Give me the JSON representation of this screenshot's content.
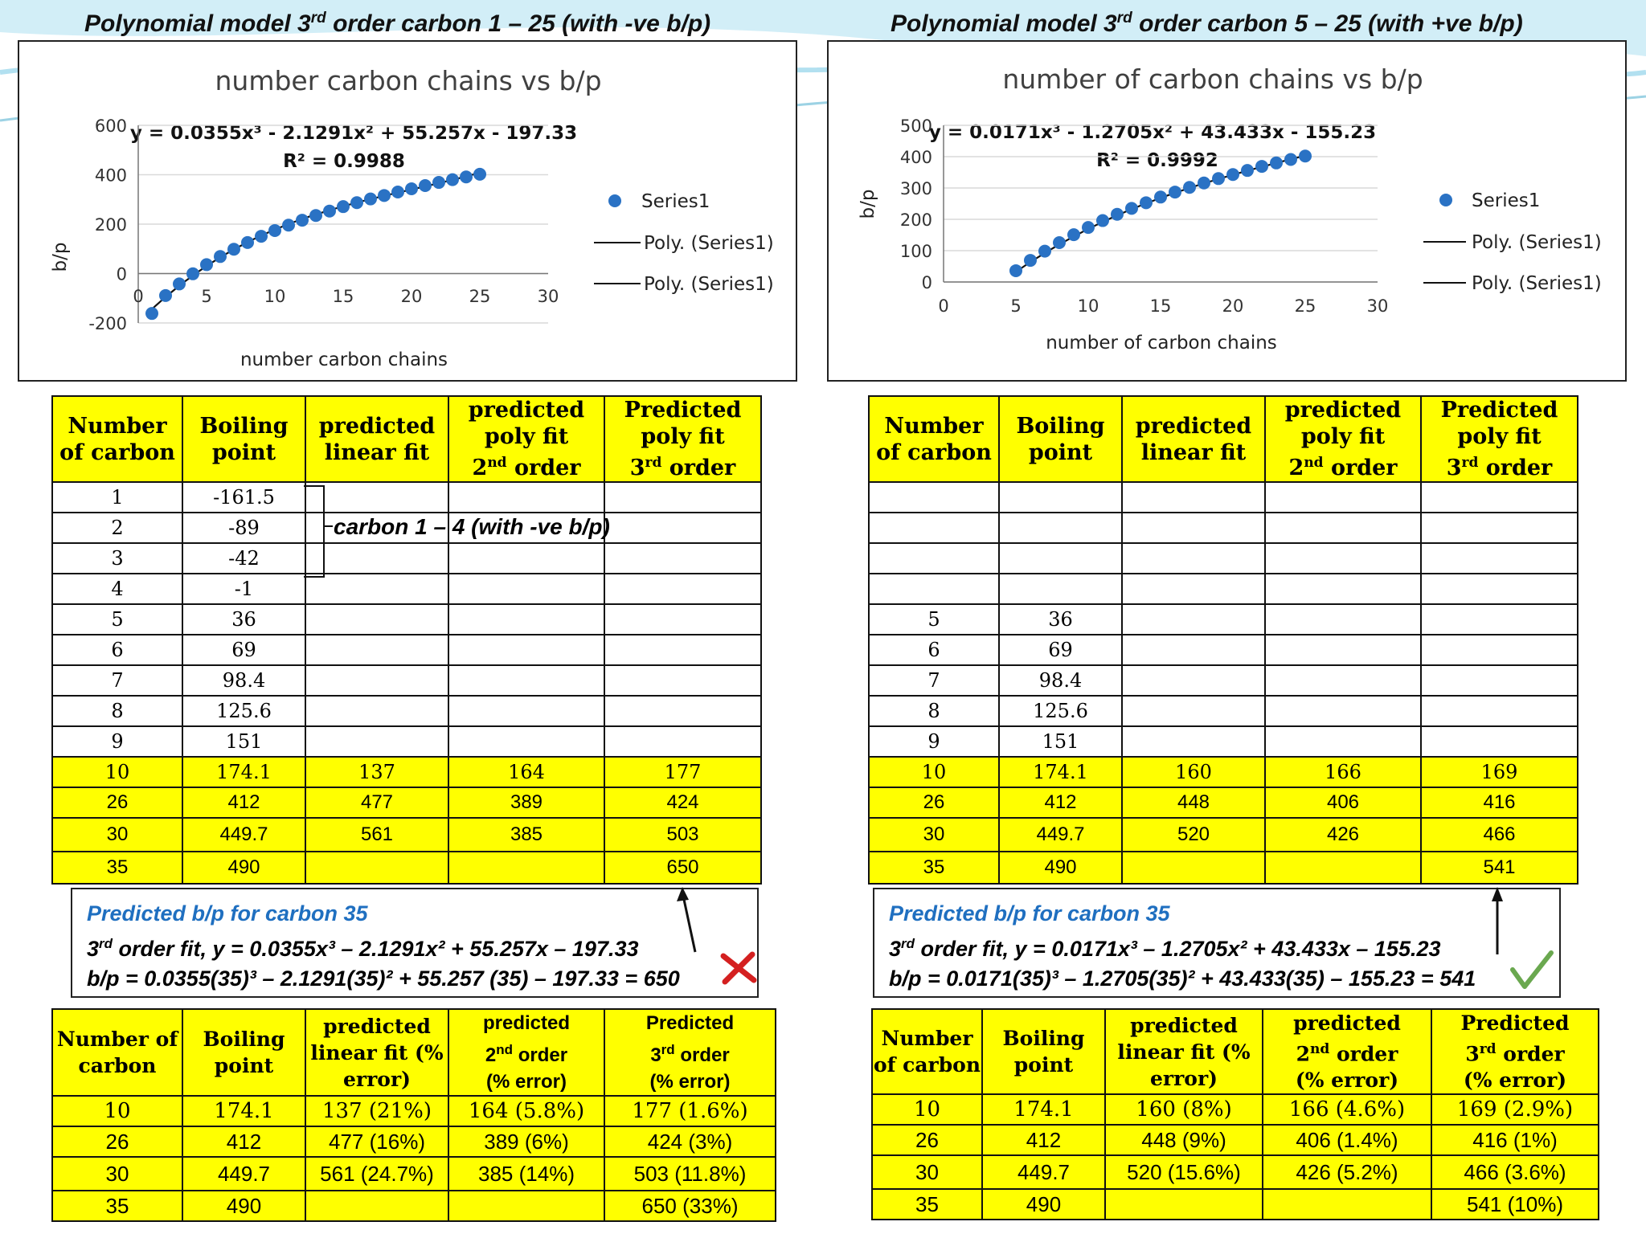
{
  "left": {
    "slide_title": {
      "pre": "Polynomial model 3",
      "sup": "rd",
      "post": " order carbon 1 – 25 (with -ve b/p)"
    },
    "chart_title": "number carbon chains vs b/p",
    "equation": "y = 0.0355x³ - 2.1291x² + 55.257x - 197.33",
    "r2": "R² = 0.9988",
    "xlabel": "number carbon chains",
    "ylabel": "b/p",
    "xticks": [
      "0",
      "5",
      "10",
      "15",
      "20",
      "25",
      "30"
    ],
    "yticks": [
      "-200",
      "0",
      "200",
      "400",
      "600"
    ],
    "legend": [
      "Series1",
      "Poly. (Series1)",
      "Poly. (Series1)"
    ],
    "table1": {
      "headers": [
        "Number of carbon",
        "Boiling point",
        "predicted linear fit",
        "predicted poly fit",
        "Predicted poly fit"
      ],
      "orders": [
        "2nd order",
        "3rd order"
      ],
      "rows": [
        [
          "1",
          "-161.5",
          "",
          "",
          ""
        ],
        [
          "2",
          "-89",
          "",
          "",
          ""
        ],
        [
          "3",
          "-42",
          "",
          "",
          ""
        ],
        [
          "4",
          "-1",
          "",
          "",
          ""
        ],
        [
          "5",
          "36",
          "",
          "",
          ""
        ],
        [
          "6",
          "69",
          "",
          "",
          ""
        ],
        [
          "7",
          "98.4",
          "",
          "",
          ""
        ],
        [
          "8",
          "125.6",
          "",
          "",
          ""
        ],
        [
          "9",
          "151",
          "",
          "",
          ""
        ],
        [
          "10",
          "174.1",
          "137",
          "164",
          "177"
        ],
        [
          "26",
          "412",
          "477",
          "389",
          "424"
        ],
        [
          "30",
          "449.7",
          "561",
          "385",
          "503"
        ],
        [
          "35",
          "490",
          "",
          "",
          "650"
        ]
      ]
    },
    "bracket_label": "carbon 1 – 4 (with -ve b/p)",
    "note": {
      "heading": "Predicted b/p for carbon 35",
      "line1_pre": "3",
      "line1_sup": "rd",
      "line1_post": " order fit, y = 0.0355x³ – 2.1291x² + 55.257x – 197.33",
      "line2": "b/p = 0.0355(35)³ – 2.1291(35)² + 55.257 (35) – 197.33 = 650"
    },
    "table2": {
      "headers": [
        "Number of carbon",
        "Boiling point",
        "predicted linear fit (% error)",
        "predicted",
        "Predicted"
      ],
      "sub": [
        "2nd order",
        "(% error)",
        "3rd order",
        "(% error)"
      ],
      "rows": [
        [
          "10",
          "174.1",
          "137 (21%)",
          "164 (5.8%)",
          "177 (1.6%)"
        ],
        [
          "26",
          "412",
          "477 (16%)",
          "389 (6%)",
          "424 (3%)"
        ],
        [
          "30",
          "449.7",
          "561 (24.7%)",
          "385 (14%)",
          "503 (11.8%)"
        ],
        [
          "35",
          "490",
          "",
          "",
          "650 (33%)"
        ]
      ]
    }
  },
  "right": {
    "slide_title": {
      "pre": "Polynomial model 3",
      "sup": "rd",
      "post": " order carbon 5 – 25 (with +ve b/p)"
    },
    "chart_title": "number of carbon chains vs b/p",
    "equation": "y = 0.0171x³ - 1.2705x² + 43.433x - 155.23",
    "r2": "R² = 0.9992",
    "xlabel": "number of carbon chains",
    "ylabel": "b/p",
    "xticks": [
      "0",
      "5",
      "10",
      "15",
      "20",
      "25",
      "30"
    ],
    "yticks": [
      "0",
      "100",
      "200",
      "300",
      "400",
      "500"
    ],
    "legend": [
      "Series1",
      "Poly. (Series1)",
      "Poly. (Series1)"
    ],
    "table1": {
      "headers": [
        "Number of carbon",
        "Boiling point",
        "predicted linear fit",
        "predicted poly fit",
        "Predicted poly fit"
      ],
      "orders": [
        "2nd order",
        "3rd order"
      ],
      "rows": [
        [
          "",
          "",
          "",
          "",
          ""
        ],
        [
          "",
          "",
          "",
          "",
          ""
        ],
        [
          "",
          "",
          "",
          "",
          ""
        ],
        [
          "",
          "",
          "",
          "",
          ""
        ],
        [
          "5",
          "36",
          "",
          "",
          ""
        ],
        [
          "6",
          "69",
          "",
          "",
          ""
        ],
        [
          "7",
          "98.4",
          "",
          "",
          ""
        ],
        [
          "8",
          "125.6",
          "",
          "",
          ""
        ],
        [
          "9",
          "151",
          "",
          "",
          ""
        ],
        [
          "10",
          "174.1",
          "160",
          "166",
          "169"
        ],
        [
          "26",
          "412",
          "448",
          "406",
          "416"
        ],
        [
          "30",
          "449.7",
          "520",
          "426",
          "466"
        ],
        [
          "35",
          "490",
          "",
          "",
          "541"
        ]
      ]
    },
    "note": {
      "heading": "Predicted b/p for carbon 35",
      "line1_pre": "3",
      "line1_sup": "rd",
      "line1_post": " order fit, y = 0.0171x³ – 1.2705x² + 43.433x – 155.23",
      "line2": "b/p = 0.0171(35)³ – 1.2705(35)² + 43.433(35) – 155.23 = 541"
    },
    "table2": {
      "headers": [
        "Number of carbon",
        "Boiling point",
        "predicted linear fit (% error)",
        "predicted",
        "Predicted"
      ],
      "sub": [
        "2nd order",
        "(% error)",
        "3rd order",
        "(% error)"
      ],
      "rows": [
        [
          "10",
          "174.1",
          "160 (8%)",
          "166 (4.6%)",
          "169 (2.9%)"
        ],
        [
          "26",
          "412",
          "448 (9%)",
          "406 (1.4%)",
          "416 (1%)"
        ],
        [
          "30",
          "449.7",
          "520 (15.6%)",
          "426 (5.2%)",
          "466 (3.6%)"
        ],
        [
          "35",
          "490",
          "",
          "",
          "541 (10%)"
        ]
      ]
    }
  },
  "colors": {
    "point": "#2a72c4",
    "highlight": "#ffff00",
    "heading": "#1f6fc0",
    "cross": "#d42020",
    "check": "#6aa84f"
  },
  "chart_data": [
    {
      "type": "scatter",
      "title": "number carbon chains vs b/p",
      "xlabel": "number carbon chains",
      "ylabel": "b/p",
      "xlim": [
        0,
        30
      ],
      "ylim": [
        -200,
        600
      ],
      "series": [
        {
          "name": "Series1",
          "x": [
            1,
            2,
            3,
            4,
            5,
            6,
            7,
            8,
            9,
            10,
            11,
            12,
            13,
            14,
            15,
            16,
            17,
            18,
            19,
            20,
            21,
            22,
            23,
            24,
            25
          ],
          "y": [
            -161.5,
            -89,
            -42,
            -1,
            36,
            69,
            98.4,
            125.6,
            151,
            174.1,
            196,
            216,
            235,
            253,
            271,
            287,
            302,
            316,
            330,
            343,
            356,
            369,
            380,
            391,
            402
          ]
        }
      ],
      "trendline": {
        "type": "poly3",
        "coef": [
          0.0355,
          -2.1291,
          55.257,
          -197.33
        ]
      },
      "legend": "right",
      "grid": true
    },
    {
      "type": "scatter",
      "title": "number of carbon chains vs b/p",
      "xlabel": "number of carbon chains",
      "ylabel": "b/p",
      "xlim": [
        0,
        30
      ],
      "ylim": [
        0,
        500
      ],
      "series": [
        {
          "name": "Series1",
          "x": [
            5,
            6,
            7,
            8,
            9,
            10,
            11,
            12,
            13,
            14,
            15,
            16,
            17,
            18,
            19,
            20,
            21,
            22,
            23,
            24,
            25
          ],
          "y": [
            36,
            69,
            98.4,
            125.6,
            151,
            174.1,
            196,
            216,
            235,
            253,
            271,
            287,
            302,
            316,
            330,
            343,
            356,
            369,
            380,
            391,
            402
          ]
        }
      ],
      "trendline": {
        "type": "poly3",
        "coef": [
          0.0171,
          -1.2705,
          43.433,
          -155.23
        ]
      },
      "legend": "right",
      "grid": true
    }
  ]
}
